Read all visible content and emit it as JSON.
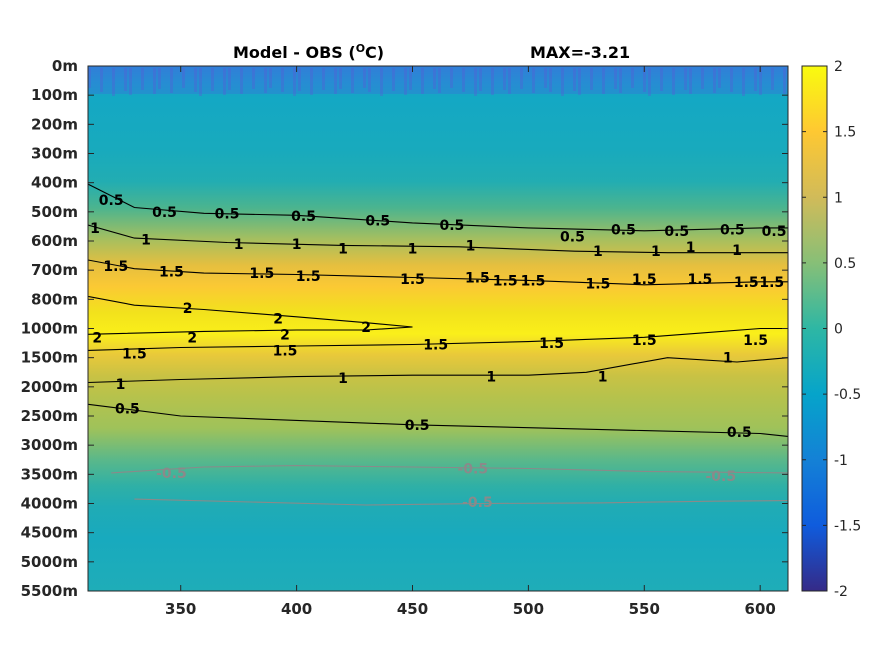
{
  "title": {
    "left_main": "Model - OBS (",
    "left_sup": "O",
    "left_end": "C)",
    "right": "MAX=-3.21"
  },
  "chart_data": {
    "type": "heatmap",
    "title": "Model - OBS (°C)",
    "annotation": "MAX=-3.21",
    "xlabel": "",
    "ylabel": "",
    "x_ticks": [
      350,
      400,
      450,
      500,
      550,
      600
    ],
    "xlim": [
      310,
      612
    ],
    "y_tick_labels": [
      "0m",
      "100m",
      "200m",
      "300m",
      "400m",
      "500m",
      "600m",
      "700m",
      "800m",
      "1000m",
      "1500m",
      "2000m",
      "2500m",
      "3000m",
      "3500m",
      "4000m",
      "4500m",
      "5000m",
      "5500m"
    ],
    "colorbar": {
      "ticks": [
        "2",
        "1.5",
        "1",
        "0.5",
        "0",
        "-0.5",
        "-1",
        "-1.5",
        "-2"
      ],
      "range": [
        -2,
        2
      ],
      "colormap": "parula"
    },
    "grid": false,
    "contour_levels": [
      -0.5,
      0.5,
      1,
      1.5,
      2
    ],
    "contours": [
      {
        "level": 0.5,
        "x": [
          310,
          330,
          360,
          400,
          450,
          500,
          550,
          600,
          612
        ],
        "depth_index": [
          4.05,
          4.85,
          5.05,
          5.12,
          5.38,
          5.55,
          5.65,
          5.55,
          5.55
        ]
      },
      {
        "level": 1,
        "x": [
          310,
          330,
          370,
          420,
          470,
          520,
          560,
          600,
          612
        ],
        "depth_index": [
          5.45,
          5.9,
          6.05,
          6.15,
          6.2,
          6.35,
          6.4,
          6.4,
          6.4
        ]
      },
      {
        "level": 1.5,
        "x": [
          310,
          330,
          360,
          400,
          450,
          500,
          550,
          600,
          612
        ],
        "depth_index": [
          6.65,
          6.95,
          7.1,
          7.15,
          7.25,
          7.35,
          7.5,
          7.4,
          7.4
        ]
      },
      {
        "level": 2,
        "x": [
          310,
          330,
          360,
          400,
          430,
          450,
          430,
          400,
          360,
          310
        ],
        "depth_index": [
          7.9,
          8.2,
          8.35,
          8.6,
          8.8,
          8.95,
          9.05,
          9.05,
          9.1,
          9.2
        ]
      },
      {
        "level": 1.5,
        "x": [
          310,
          350,
          400,
          450,
          500,
          550,
          575,
          600,
          612
        ],
        "depth_index": [
          9.75,
          9.65,
          9.6,
          9.55,
          9.45,
          9.3,
          9.15,
          9.0,
          9.0
        ]
      },
      {
        "level": 1,
        "x": [
          310,
          350,
          400,
          450,
          500,
          525,
          560,
          590,
          612
        ],
        "depth_index": [
          10.85,
          10.75,
          10.65,
          10.6,
          10.6,
          10.5,
          10.0,
          10.15,
          10.0
        ]
      },
      {
        "level": 0.5,
        "x": [
          310,
          350,
          400,
          450,
          500,
          550,
          600,
          612
        ],
        "depth_index": [
          11.6,
          12.0,
          12.15,
          12.3,
          12.4,
          12.5,
          12.6,
          12.7
        ]
      },
      {
        "level": -0.5,
        "x": [
          320,
          360,
          400,
          450,
          500,
          550,
          612
        ],
        "depth_index": [
          13.95,
          13.75,
          13.7,
          13.75,
          13.8,
          13.9,
          13.95
        ]
      },
      {
        "level": -0.5,
        "x": [
          330,
          380,
          430,
          480,
          530,
          580,
          612
        ],
        "depth_index": [
          14.85,
          14.95,
          15.05,
          15.0,
          14.98,
          14.92,
          14.9
        ]
      }
    ],
    "contour_labels": [
      {
        "text": "0.5",
        "x": 320,
        "depth_index": 4.6
      },
      {
        "text": "0.5",
        "x": 343,
        "depth_index": 5.0
      },
      {
        "text": "0.5",
        "x": 370,
        "depth_index": 5.05
      },
      {
        "text": "0.5",
        "x": 403,
        "depth_index": 5.15
      },
      {
        "text": "0.5",
        "x": 435,
        "depth_index": 5.3
      },
      {
        "text": "0.5",
        "x": 467,
        "depth_index": 5.45
      },
      {
        "text": "0.5",
        "x": 519,
        "depth_index": 5.85
      },
      {
        "text": "0.5",
        "x": 541,
        "depth_index": 5.6
      },
      {
        "text": "0.5",
        "x": 564,
        "depth_index": 5.65
      },
      {
        "text": "0.5",
        "x": 588,
        "depth_index": 5.6
      },
      {
        "text": "0.5",
        "x": 606,
        "depth_index": 5.65
      },
      {
        "text": "1",
        "x": 313,
        "depth_index": 5.55
      },
      {
        "text": "1",
        "x": 335,
        "depth_index": 5.95
      },
      {
        "text": "1",
        "x": 375,
        "depth_index": 6.1
      },
      {
        "text": "1",
        "x": 400,
        "depth_index": 6.1
      },
      {
        "text": "1",
        "x": 420,
        "depth_index": 6.25
      },
      {
        "text": "1",
        "x": 450,
        "depth_index": 6.25
      },
      {
        "text": "1",
        "x": 475,
        "depth_index": 6.15
      },
      {
        "text": "1",
        "x": 530,
        "depth_index": 6.35
      },
      {
        "text": "1",
        "x": 555,
        "depth_index": 6.35
      },
      {
        "text": "1",
        "x": 570,
        "depth_index": 6.2
      },
      {
        "text": "1",
        "x": 590,
        "depth_index": 6.3
      },
      {
        "text": "1.5",
        "x": 322,
        "depth_index": 6.85
      },
      {
        "text": "1.5",
        "x": 346,
        "depth_index": 7.05
      },
      {
        "text": "1.5",
        "x": 385,
        "depth_index": 7.1
      },
      {
        "text": "1.5",
        "x": 405,
        "depth_index": 7.2
      },
      {
        "text": "1.5",
        "x": 450,
        "depth_index": 7.3
      },
      {
        "text": "1.5",
        "x": 478,
        "depth_index": 7.25
      },
      {
        "text": "1.5",
        "x": 490,
        "depth_index": 7.35
      },
      {
        "text": "1.5",
        "x": 502,
        "depth_index": 7.35
      },
      {
        "text": "1.5",
        "x": 530,
        "depth_index": 7.45
      },
      {
        "text": "1.5",
        "x": 550,
        "depth_index": 7.3
      },
      {
        "text": "1.5",
        "x": 574,
        "depth_index": 7.3
      },
      {
        "text": "1.5",
        "x": 594,
        "depth_index": 7.4
      },
      {
        "text": "1.5",
        "x": 605,
        "depth_index": 7.4
      },
      {
        "text": "2",
        "x": 353,
        "depth_index": 8.3
      },
      {
        "text": "2",
        "x": 392,
        "depth_index": 8.65
      },
      {
        "text": "2",
        "x": 430,
        "depth_index": 8.95
      },
      {
        "text": "2",
        "x": 314,
        "depth_index": 9.3
      },
      {
        "text": "2",
        "x": 355,
        "depth_index": 9.3
      },
      {
        "text": "2",
        "x": 395,
        "depth_index": 9.2
      },
      {
        "text": "1.5",
        "x": 330,
        "depth_index": 9.85
      },
      {
        "text": "1.5",
        "x": 395,
        "depth_index": 9.75
      },
      {
        "text": "1.5",
        "x": 460,
        "depth_index": 9.55
      },
      {
        "text": "1.5",
        "x": 510,
        "depth_index": 9.5
      },
      {
        "text": "1.5",
        "x": 550,
        "depth_index": 9.4
      },
      {
        "text": "1.5",
        "x": 598,
        "depth_index": 9.4
      },
      {
        "text": "1",
        "x": 324,
        "depth_index": 10.9
      },
      {
        "text": "1",
        "x": 420,
        "depth_index": 10.7
      },
      {
        "text": "1",
        "x": 484,
        "depth_index": 10.65
      },
      {
        "text": "1",
        "x": 532,
        "depth_index": 10.65
      },
      {
        "text": "1",
        "x": 586,
        "depth_index": 10.0
      },
      {
        "text": "0.5",
        "x": 327,
        "depth_index": 11.75
      },
      {
        "text": "0.5",
        "x": 452,
        "depth_index": 12.3
      },
      {
        "text": "0.5",
        "x": 591,
        "depth_index": 12.55
      },
      {
        "text": "-0.5",
        "x": 346,
        "depth_index": 13.95
      },
      {
        "text": "-0.5",
        "x": 476,
        "depth_index": 13.8
      },
      {
        "text": "-0.5",
        "x": 583,
        "depth_index": 14.05
      },
      {
        "text": "-0.5",
        "x": 478,
        "depth_index": 14.95
      }
    ]
  },
  "colors": {
    "contour_positive": "#000000",
    "contour_negative": "#8a8a8a",
    "parula_stops": [
      "#352a87",
      "#0f5cdd",
      "#1481d6",
      "#06a4ca",
      "#2eb7a4",
      "#87bf77",
      "#d1bb59",
      "#fec832",
      "#f9fb0e"
    ]
  }
}
